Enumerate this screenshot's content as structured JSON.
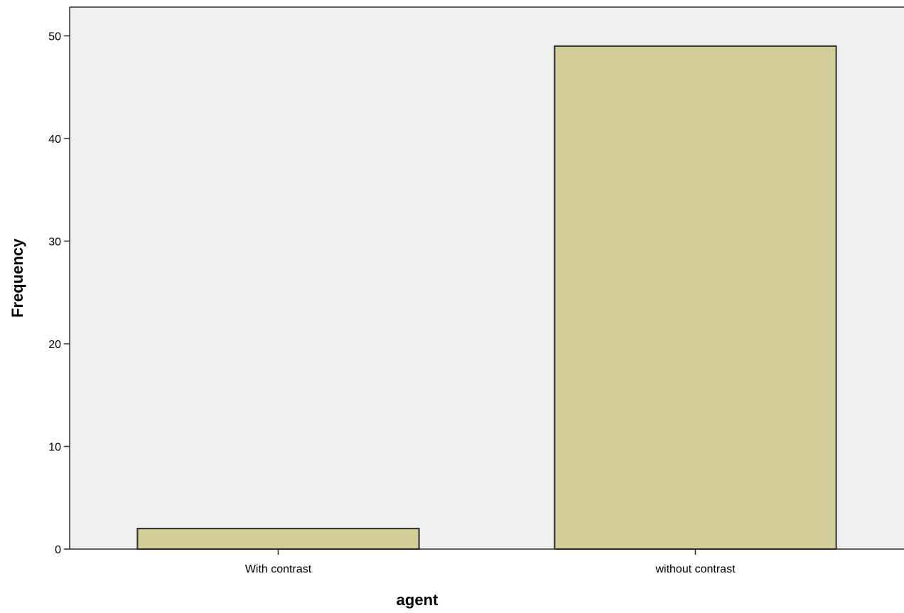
{
  "chart_data": {
    "type": "bar",
    "title": "",
    "xlabel": "agent",
    "ylabel": "Frequency",
    "categories": [
      "With contrast",
      "without contrast"
    ],
    "values": [
      2,
      49
    ],
    "ylim": [
      0,
      52.8
    ],
    "yticks": [
      0,
      10,
      20,
      30,
      40,
      50
    ],
    "grid": false,
    "legend": "none",
    "colors": {
      "plot_background": "#f0f0f0",
      "bar_fill": "#d3cd97",
      "bar_stroke": "#2e2e2e",
      "axis": "#2e2e2e"
    }
  }
}
